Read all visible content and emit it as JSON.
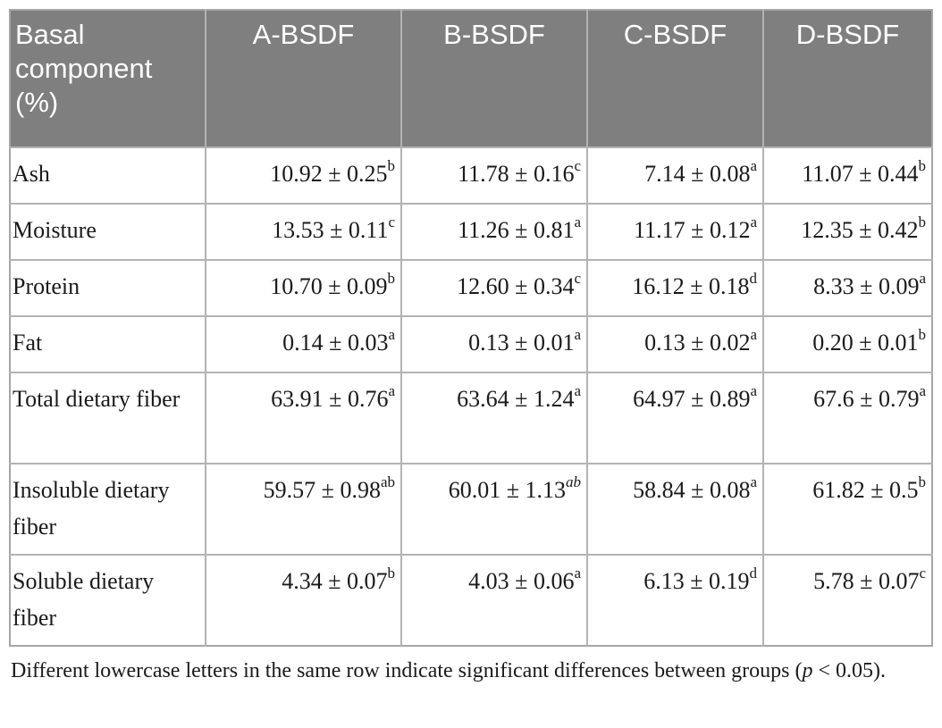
{
  "table": {
    "headers": [
      "Basal component (%)",
      "A-BSDF",
      "B-BSDF",
      "C-BSDF",
      "D-BSDF"
    ],
    "rows": [
      {
        "label": "Ash",
        "cells": [
          {
            "value": "10.92 ± 0.25",
            "sup": "b"
          },
          {
            "value": "11.78 ± 0.16",
            "sup": "c"
          },
          {
            "value": "7.14 ± 0.08",
            "sup": "a"
          },
          {
            "value": "11.07 ± 0.44",
            "sup": "b"
          }
        ]
      },
      {
        "label": "Moisture",
        "cells": [
          {
            "value": "13.53 ± 0.11",
            "sup": "c"
          },
          {
            "value": "11.26 ± 0.81",
            "sup": "a"
          },
          {
            "value": "11.17 ± 0.12",
            "sup": "a"
          },
          {
            "value": "12.35 ± 0.42",
            "sup": "b"
          }
        ]
      },
      {
        "label": "Protein",
        "cells": [
          {
            "value": "10.70 ± 0.09",
            "sup": "b"
          },
          {
            "value": "12.60 ± 0.34",
            "sup": "c"
          },
          {
            "value": "16.12 ± 0.18",
            "sup": "d"
          },
          {
            "value": "8.33 ± 0.09",
            "sup": "a"
          }
        ]
      },
      {
        "label": "Fat",
        "cells": [
          {
            "value": "0.14 ± 0.03",
            "sup": "a"
          },
          {
            "value": "0.13 ± 0.01",
            "sup": "a"
          },
          {
            "value": "0.13 ± 0.02",
            "sup": "a"
          },
          {
            "value": "0.20 ± 0.01",
            "sup": "b"
          }
        ]
      },
      {
        "label": "Total dietary fiber",
        "cells": [
          {
            "value": "63.91 ± 0.76",
            "sup": "a"
          },
          {
            "value": "63.64 ± 1.24",
            "sup": "a"
          },
          {
            "value": "64.97 ± 0.89",
            "sup": "a"
          },
          {
            "value": "67.6 ± 0.79",
            "sup": "a"
          }
        ]
      },
      {
        "label": "Insoluble dietary fiber",
        "cells": [
          {
            "value": "59.57 ± 0.98",
            "sup": "ab"
          },
          {
            "value": "60.01 ± 1.13",
            "sup": "ab",
            "sup_italic": true
          },
          {
            "value": "58.84 ± 0.08",
            "sup": "a"
          },
          {
            "value": "61.82 ± 0.5",
            "sup": "b"
          }
        ]
      },
      {
        "label": "Soluble dietary fiber",
        "cells": [
          {
            "value": "4.34 ± 0.07",
            "sup": "b"
          },
          {
            "value": "4.03 ± 0.06",
            "sup": "a"
          },
          {
            "value": "6.13 ± 0.19",
            "sup": "d"
          },
          {
            "value": "5.78 ± 0.07",
            "sup": "c"
          }
        ]
      }
    ]
  },
  "footnote": {
    "text": "Different lowercase letters in the same row indicate significant differences between groups (",
    "italic_var": "p",
    "tail": " < 0.05)."
  },
  "colors": {
    "header_bg": "#7f7f7f",
    "header_text": "#ffffff",
    "grid": "#b3b3b3"
  }
}
